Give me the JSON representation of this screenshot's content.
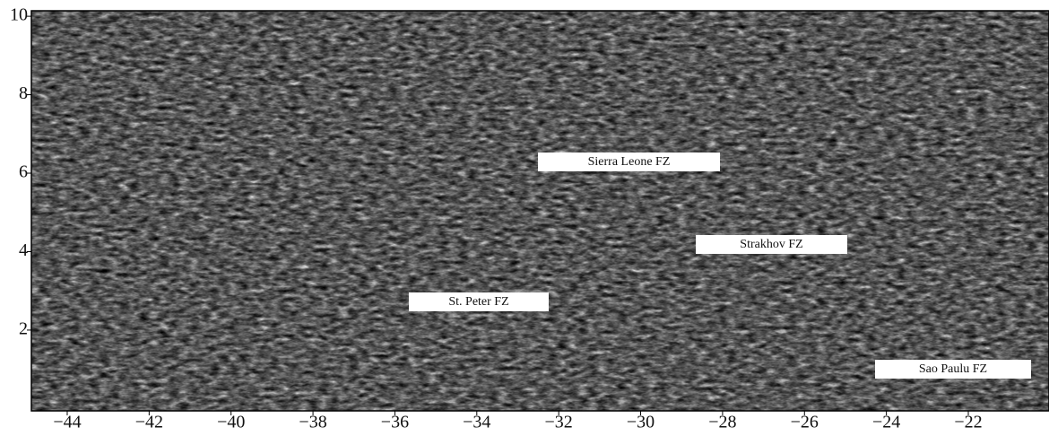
{
  "map": {
    "xlim": [
      -44.875,
      -20.03
    ],
    "ylim": [
      -0.06,
      10.14
    ],
    "xticks": [
      {
        "value": -44,
        "label": "−44"
      },
      {
        "value": -42,
        "label": "−42"
      },
      {
        "value": -40,
        "label": "−40"
      },
      {
        "value": -38,
        "label": "−38"
      },
      {
        "value": -36,
        "label": "−36"
      },
      {
        "value": -34,
        "label": "−34"
      },
      {
        "value": -32,
        "label": "−32"
      },
      {
        "value": -30,
        "label": "−30"
      },
      {
        "value": -28,
        "label": "−28"
      },
      {
        "value": -26,
        "label": "−26"
      },
      {
        "value": -24,
        "label": "−24"
      },
      {
        "value": -22,
        "label": "−22"
      }
    ],
    "yticks": [
      2,
      4,
      6,
      8,
      10
    ],
    "labels": [
      "Sierra Leone FZ",
      "Strakhov FZ",
      "St. Peter FZ",
      "Sao Paulu FZ"
    ]
  }
}
